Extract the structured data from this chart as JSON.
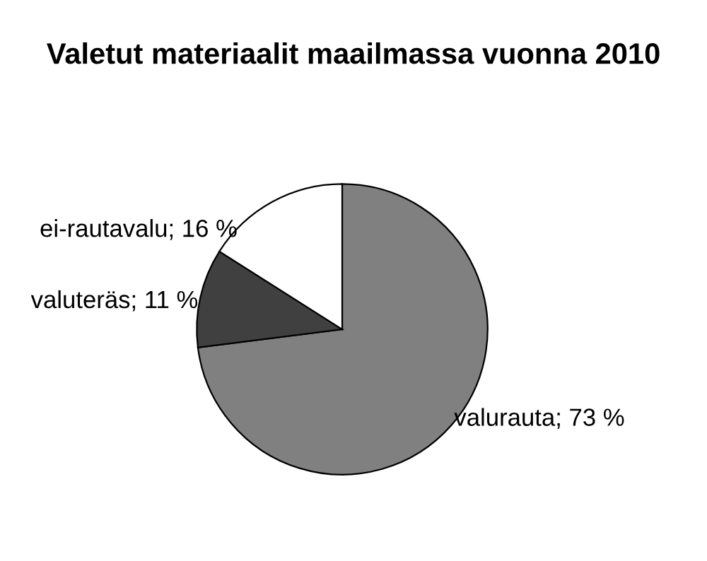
{
  "chart_data": {
    "type": "pie",
    "title": "Valetut materiaalit maailmassa vuonna 2010",
    "categories": [
      "valurauta",
      "valuteräs",
      "ei-rautavalu"
    ],
    "values": [
      73,
      11,
      16
    ],
    "value_labels": [
      "73 %",
      "11 %",
      "16 %"
    ],
    "colors": [
      "#808080",
      "#404040",
      "#ffffff"
    ]
  }
}
